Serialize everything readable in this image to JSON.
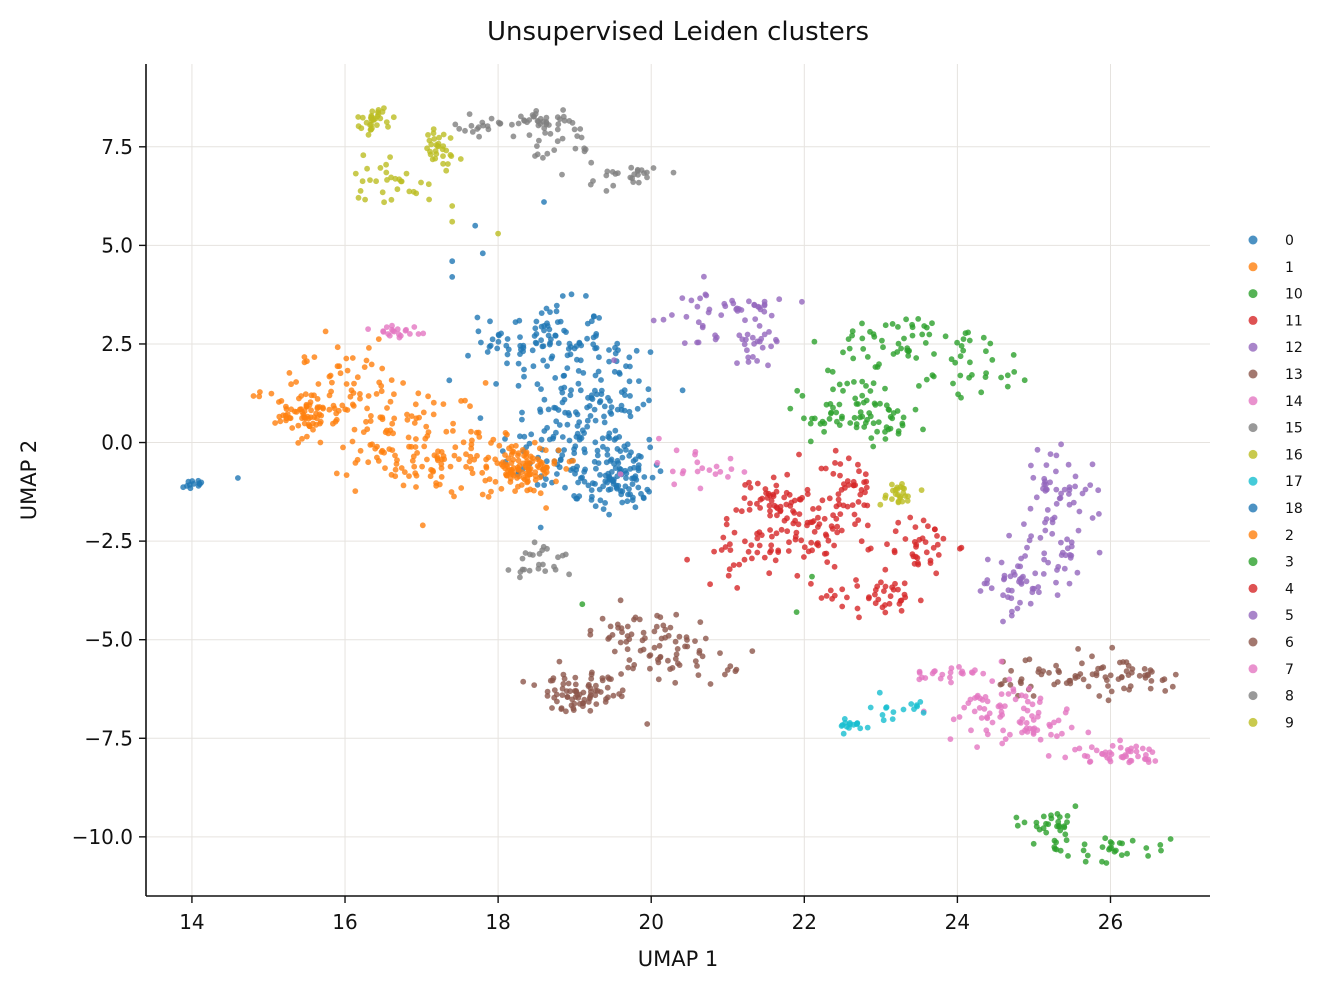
{
  "chart_data": {
    "type": "scatter",
    "title": "Unsupervised Leiden clusters",
    "xlabel": "UMAP 1",
    "ylabel": "UMAP 2",
    "xlim": [
      13.4,
      27.3
    ],
    "ylim": [
      -11.5,
      9.6
    ],
    "xticks": [
      14,
      16,
      18,
      20,
      22,
      24,
      26
    ],
    "yticks": [
      7.5,
      5.0,
      2.5,
      0.0,
      -2.5,
      -5.0,
      -7.5,
      -10.0
    ],
    "ytick_labels": [
      "7.5",
      "5.0",
      "2.5",
      "0.0",
      "−2.5",
      "−5.0",
      "−7.5",
      "−10.0"
    ],
    "grid": true,
    "legend_position": "right",
    "legend": [
      "0",
      "1",
      "10",
      "11",
      "12",
      "13",
      "14",
      "15",
      "16",
      "17",
      "18",
      "2",
      "3",
      "4",
      "5",
      "6",
      "7",
      "8",
      "9"
    ],
    "colors": {
      "0": "#1f77b4",
      "1": "#ff7f0e",
      "10": "#2ca02c",
      "11": "#d62728",
      "12": "#9467bd",
      "13": "#8c564b",
      "14": "#e377c2",
      "15": "#7f7f7f",
      "16": "#bcbd22",
      "17": "#17becf",
      "18": "#1f77b4",
      "2": "#ff7f0e",
      "3": "#2ca02c",
      "4": "#d62728",
      "5": "#9467bd",
      "6": "#8c564b",
      "7": "#e377c2",
      "8": "#7f7f7f",
      "9": "#bcbd22"
    },
    "clusters": [
      {
        "name": "0",
        "n": 380,
        "blobs": [
          [
            18.9,
            -0.2,
            0.55,
            0.9
          ],
          [
            19.3,
            1.2,
            0.6,
            1.0
          ],
          [
            18.6,
            2.6,
            0.5,
            0.6
          ],
          [
            19.6,
            -0.9,
            0.25,
            0.5
          ]
        ]
      },
      {
        "name": "1",
        "n": 180,
        "blobs": [
          [
            15.8,
            1.4,
            0.55,
            0.7
          ],
          [
            16.8,
            0.4,
            0.6,
            0.7
          ],
          [
            15.5,
            0.7,
            0.25,
            0.25
          ]
        ]
      },
      {
        "name": "2",
        "n": 200,
        "blobs": [
          [
            17.3,
            -0.4,
            0.7,
            0.55
          ],
          [
            18.3,
            -0.7,
            0.3,
            0.4
          ]
        ]
      },
      {
        "name": "4",
        "n": 140,
        "blobs": [
          [
            21.4,
            -2.8,
            0.5,
            0.45
          ],
          [
            22.1,
            -2.1,
            0.4,
            0.5
          ],
          [
            21.6,
            -1.4,
            0.25,
            0.4
          ]
        ]
      },
      {
        "name": "11",
        "n": 120,
        "blobs": [
          [
            23.0,
            -3.9,
            0.5,
            0.3
          ],
          [
            23.5,
            -2.6,
            0.3,
            0.5
          ],
          [
            22.6,
            -1.2,
            0.2,
            0.6
          ]
        ]
      },
      {
        "name": "3",
        "n": 160,
        "blobs": [
          [
            22.6,
            1.0,
            0.6,
            0.5
          ],
          [
            24.1,
            2.0,
            0.6,
            0.6
          ],
          [
            23.2,
            2.6,
            0.5,
            0.4
          ],
          [
            22.9,
            0.6,
            0.5,
            0.3
          ]
        ]
      },
      {
        "name": "10",
        "n": 60,
        "blobs": [
          [
            25.2,
            -9.7,
            0.3,
            0.3
          ],
          [
            26.0,
            -10.3,
            0.5,
            0.2
          ]
        ]
      },
      {
        "name": "12",
        "n": 70,
        "blobs": [
          [
            21.2,
            3.5,
            0.3,
            0.2
          ],
          [
            20.8,
            3.1,
            0.5,
            0.6
          ],
          [
            21.4,
            2.6,
            0.2,
            0.3
          ]
        ]
      },
      {
        "name": "5",
        "n": 120,
        "blobs": [
          [
            25.3,
            -1.2,
            0.3,
            0.6
          ],
          [
            25.3,
            -2.7,
            0.35,
            0.7
          ],
          [
            24.7,
            -3.6,
            0.3,
            0.5
          ]
        ]
      },
      {
        "name": "6",
        "n": 140,
        "blobs": [
          [
            19.2,
            -6.1,
            0.45,
            0.45
          ],
          [
            20.4,
            -5.4,
            0.5,
            0.4
          ],
          [
            25.3,
            -6.0,
            0.6,
            0.4
          ]
        ]
      },
      {
        "name": "13",
        "n": 100,
        "blobs": [
          [
            26.3,
            -5.9,
            0.35,
            0.3
          ],
          [
            19.8,
            -4.8,
            0.4,
            0.3
          ],
          [
            19.0,
            -6.5,
            0.2,
            0.2
          ]
        ]
      },
      {
        "name": "7",
        "n": 130,
        "blobs": [
          [
            24.4,
            -6.7,
            0.35,
            0.6
          ],
          [
            25.0,
            -7.0,
            0.35,
            0.5
          ],
          [
            26.1,
            -7.9,
            0.35,
            0.15
          ]
        ]
      },
      {
        "name": "14",
        "n": 60,
        "blobs": [
          [
            20.6,
            -0.6,
            0.35,
            0.3
          ],
          [
            16.7,
            2.8,
            0.25,
            0.15
          ],
          [
            23.8,
            -5.9,
            0.3,
            0.2
          ]
        ]
      },
      {
        "name": "15",
        "n": 70,
        "blobs": [
          [
            18.9,
            7.6,
            0.3,
            0.5
          ],
          [
            19.7,
            6.8,
            0.3,
            0.2
          ],
          [
            17.9,
            8.0,
            0.3,
            0.15
          ]
        ]
      },
      {
        "name": "8",
        "n": 50,
        "blobs": [
          [
            18.6,
            -3.0,
            0.25,
            0.35
          ],
          [
            18.6,
            8.2,
            0.2,
            0.15
          ]
        ]
      },
      {
        "name": "9",
        "n": 90,
        "blobs": [
          [
            16.4,
            8.2,
            0.15,
            0.2
          ],
          [
            16.6,
            6.7,
            0.35,
            0.4
          ],
          [
            17.2,
            7.4,
            0.2,
            0.4
          ]
        ]
      },
      {
        "name": "16",
        "n": 25,
        "blobs": [
          [
            23.2,
            -1.3,
            0.15,
            0.2
          ]
        ]
      },
      {
        "name": "17",
        "n": 30,
        "blobs": [
          [
            22.6,
            -7.2,
            0.2,
            0.1
          ],
          [
            23.2,
            -6.7,
            0.3,
            0.25
          ]
        ]
      },
      {
        "name": "18",
        "n": 12,
        "blobs": [
          [
            14.1,
            -1.05,
            0.1,
            0.06
          ]
        ]
      }
    ],
    "outliers": [
      {
        "name": "0",
        "points": [
          [
            17.4,
            4.6
          ],
          [
            17.8,
            4.8
          ],
          [
            17.4,
            4.2
          ],
          [
            17.7,
            5.5
          ],
          [
            18.6,
            6.1
          ],
          [
            14.6,
            -0.9
          ]
        ]
      },
      {
        "name": "9",
        "points": [
          [
            17.4,
            6.0
          ],
          [
            17.4,
            5.6
          ],
          [
            18.0,
            5.3
          ]
        ]
      },
      {
        "name": "6",
        "points": [
          [
            19.6,
            -4.0
          ],
          [
            21.1,
            -5.8
          ]
        ]
      },
      {
        "name": "3",
        "points": [
          [
            19.1,
            -4.1
          ],
          [
            22.1,
            -3.4
          ],
          [
            22.9,
            -0.1
          ],
          [
            21.9,
            -4.3
          ]
        ]
      },
      {
        "name": "14",
        "points": [
          [
            19.6,
            -0.8
          ],
          [
            20.1,
            0.1
          ]
        ]
      }
    ]
  }
}
